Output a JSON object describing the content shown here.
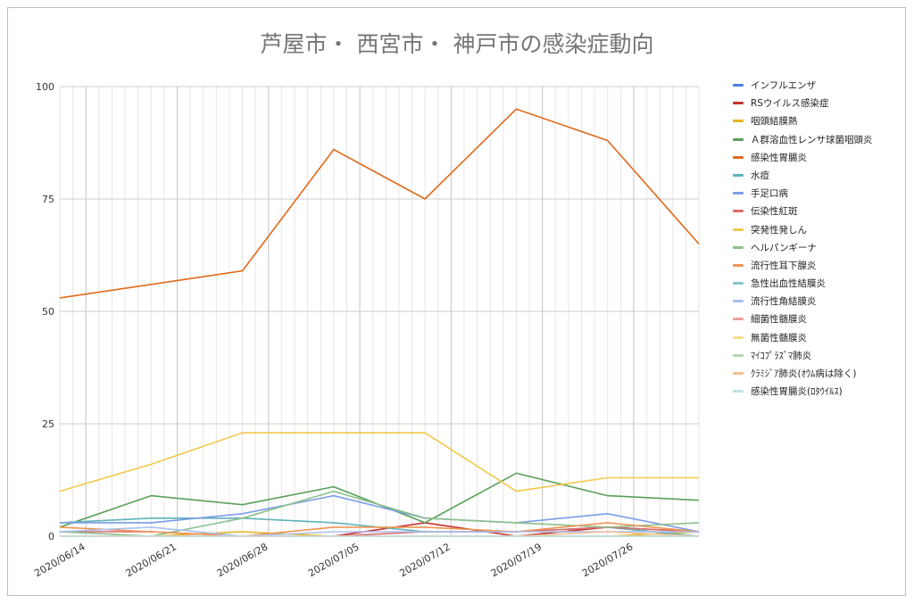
{
  "chart_data": {
    "type": "line",
    "title": "芦屋市・ 西宮市・ 神戸市の感染症動向",
    "xlabel": "",
    "ylabel": "",
    "x_dates": [
      "2020/06/12",
      "2020/06/19",
      "2020/06/26",
      "2020/07/03",
      "2020/07/10",
      "2020/07/17",
      "2020/07/24",
      "2020/07/31"
    ],
    "x_tick_labels": [
      "2020/06/14",
      "2020/06/21",
      "2020/06/28",
      "2020/07/05",
      "2020/07/12",
      "2020/07/19",
      "2020/07/26"
    ],
    "x_tick_dates": [
      "2020/06/14",
      "2020/06/21",
      "2020/06/28",
      "2020/07/05",
      "2020/07/12",
      "2020/07/19",
      "2020/07/26"
    ],
    "ylim": [
      0,
      100
    ],
    "y_ticks": [
      0,
      25,
      50,
      75,
      100
    ],
    "grid": true,
    "legend_position": "right",
    "series": [
      {
        "name": "インフルエンザ",
        "color": "#4a7fe0",
        "values": [
          0,
          0,
          0,
          0,
          0,
          0,
          0,
          0
        ]
      },
      {
        "name": "RSウイルス感染症",
        "color": "#c9302c",
        "values": [
          0,
          0,
          0,
          0,
          3,
          0,
          2,
          1
        ]
      },
      {
        "name": "咽頭結膜熱",
        "color": "#e6b422",
        "values": [
          0,
          0,
          1,
          0,
          0,
          0,
          0,
          1
        ]
      },
      {
        "name": "Ａ群溶血性レンサ球菌咽頭炎",
        "color": "#5aa05a",
        "values": [
          2,
          9,
          7,
          11,
          3,
          14,
          9,
          8
        ]
      },
      {
        "name": "感染性胃腸炎",
        "color": "#e06a1b",
        "values": [
          53,
          56,
          59,
          86,
          75,
          95,
          88,
          65
        ]
      },
      {
        "name": "水痘",
        "color": "#5fb2b8",
        "values": [
          3,
          4,
          4,
          3,
          1,
          1,
          2,
          0
        ]
      },
      {
        "name": "手足口病",
        "color": "#7a9de8",
        "values": [
          3,
          3,
          5,
          9,
          4,
          3,
          5,
          1
        ]
      },
      {
        "name": "伝染性紅斑",
        "color": "#d96b6b",
        "values": [
          1,
          1,
          0,
          0,
          1,
          1,
          2,
          1
        ]
      },
      {
        "name": "突発性発しん",
        "color": "#f2c94c",
        "values": [
          10,
          16,
          23,
          23,
          23,
          10,
          13,
          13
        ]
      },
      {
        "name": "ヘルパンギーナ",
        "color": "#8cc08c",
        "values": [
          1,
          0,
          4,
          10,
          4,
          3,
          2,
          3
        ]
      },
      {
        "name": "流行性耳下腺炎",
        "color": "#ee9553",
        "values": [
          2,
          1,
          0,
          2,
          2,
          1,
          3,
          1
        ]
      },
      {
        "name": "急性出血性結膜炎",
        "color": "#8cc6cc",
        "values": [
          0,
          0,
          0,
          0,
          0,
          0,
          0,
          0
        ]
      },
      {
        "name": "流行性角結膜炎",
        "color": "#a9c0f0",
        "values": [
          1,
          2,
          0,
          1,
          1,
          1,
          1,
          1
        ]
      },
      {
        "name": "細菌性髄膜炎",
        "color": "#e8a0a0",
        "values": [
          0,
          0,
          0,
          0,
          0,
          0,
          0,
          0
        ]
      },
      {
        "name": "無菌性髄膜炎",
        "color": "#f7de8a",
        "values": [
          0,
          0,
          0,
          0,
          0,
          0,
          0,
          0
        ]
      },
      {
        "name": "ﾏｲｺﾌﾟﾗｽﾞﾏ肺炎",
        "color": "#b4d6b4",
        "values": [
          0,
          0,
          0,
          0,
          0,
          0,
          0,
          0
        ]
      },
      {
        "name": "ｸﾗﾐｼﾞｱ肺炎(ｵｳﾑ病は除く)",
        "color": "#f5c090",
        "values": [
          0,
          0,
          0,
          0,
          0,
          0,
          1,
          0
        ]
      },
      {
        "name": "感染性胃腸炎(ﾛﾀｳｲﾙｽ)",
        "color": "#c2e0e3",
        "values": [
          0,
          0,
          0,
          0,
          0,
          0,
          0,
          0
        ]
      }
    ]
  }
}
